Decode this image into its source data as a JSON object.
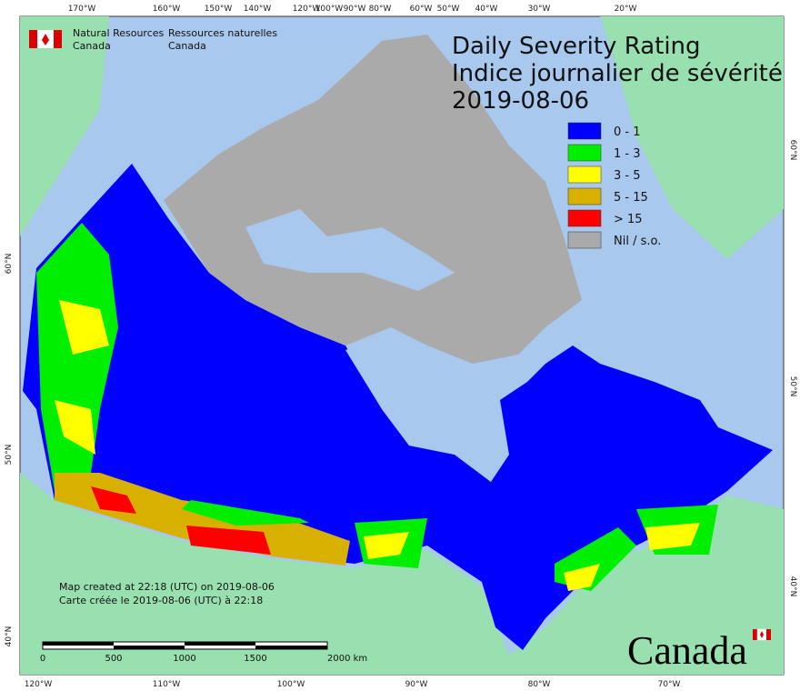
{
  "agency": {
    "en_line1": "Natural Resources",
    "en_line2": "Canada",
    "fr_line1": "Ressources naturelles",
    "fr_line2": "Canada"
  },
  "title": {
    "line1": "Daily Severity Rating",
    "line2": "Indice journalier de sévérité",
    "date": "2019-08-06"
  },
  "legend": [
    {
      "label": "0 - 1",
      "color": "#0000ff"
    },
    {
      "label": "1 - 3",
      "color": "#00ee00"
    },
    {
      "label": "3 - 5",
      "color": "#ffff00"
    },
    {
      "label": "5 - 15",
      "color": "#d8b000"
    },
    {
      "label": "> 15",
      "color": "#ff0000"
    },
    {
      "label": "Nil / s.o.",
      "color": "#aaaaaa"
    }
  ],
  "graticule": {
    "top": [
      "170°W",
      "160°W",
      "150°W",
      "140°W",
      "120°W",
      "100°W",
      "90°W",
      "80°W",
      "60°W",
      "50°W",
      "40°W",
      "30°W",
      "20°W"
    ],
    "bottom": [
      "120°W",
      "110°W",
      "100°W",
      "90°W",
      "80°W",
      "70°W"
    ],
    "left": [
      "60°N",
      "50°N",
      "40°N"
    ],
    "right": [
      "60°N",
      "50°N",
      "40°N"
    ]
  },
  "scale_bar": {
    "labels": [
      "0",
      "500",
      "1000",
      "1500",
      "2000 km"
    ]
  },
  "credits": {
    "en": "Map created at 22:18 (UTC) on 2019-08-06",
    "fr": "Carte créée le 2019-08-06 (UTC) à 22:18"
  },
  "wordmark": "Canada"
}
